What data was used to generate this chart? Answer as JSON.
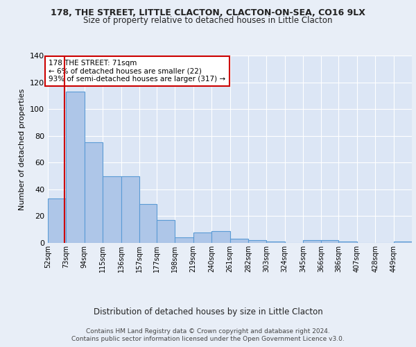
{
  "title1": "178, THE STREET, LITTLE CLACTON, CLACTON-ON-SEA, CO16 9LX",
  "title2": "Size of property relative to detached houses in Little Clacton",
  "xlabel": "Distribution of detached houses by size in Little Clacton",
  "ylabel": "Number of detached properties",
  "footer1": "Contains HM Land Registry data © Crown copyright and database right 2024.",
  "footer2": "Contains public sector information licensed under the Open Government Licence v3.0.",
  "annotation_line1": "178 THE STREET: 71sqm",
  "annotation_line2": "← 6% of detached houses are smaller (22)",
  "annotation_line3": "93% of semi-detached houses are larger (317) →",
  "property_size": 71,
  "bar_edges": [
    52,
    73,
    94,
    115,
    136,
    157,
    177,
    198,
    219,
    240,
    261,
    282,
    303,
    324,
    345,
    366,
    386,
    407,
    428,
    449,
    470
  ],
  "bar_heights": [
    33,
    113,
    75,
    50,
    50,
    29,
    17,
    4,
    8,
    9,
    3,
    2,
    1,
    0,
    2,
    2,
    1,
    0,
    0,
    1,
    0
  ],
  "bar_color": "#aec6e8",
  "bar_edge_color": "#5b9bd5",
  "marker_color": "#cc0000",
  "bg_color": "#e8eef7",
  "plot_bg_color": "#dce6f5",
  "grid_color": "#ffffff",
  "annotation_box_edge": "#cc0000",
  "ylim": [
    0,
    140
  ],
  "yticks": [
    0,
    20,
    40,
    60,
    80,
    100,
    120,
    140
  ]
}
